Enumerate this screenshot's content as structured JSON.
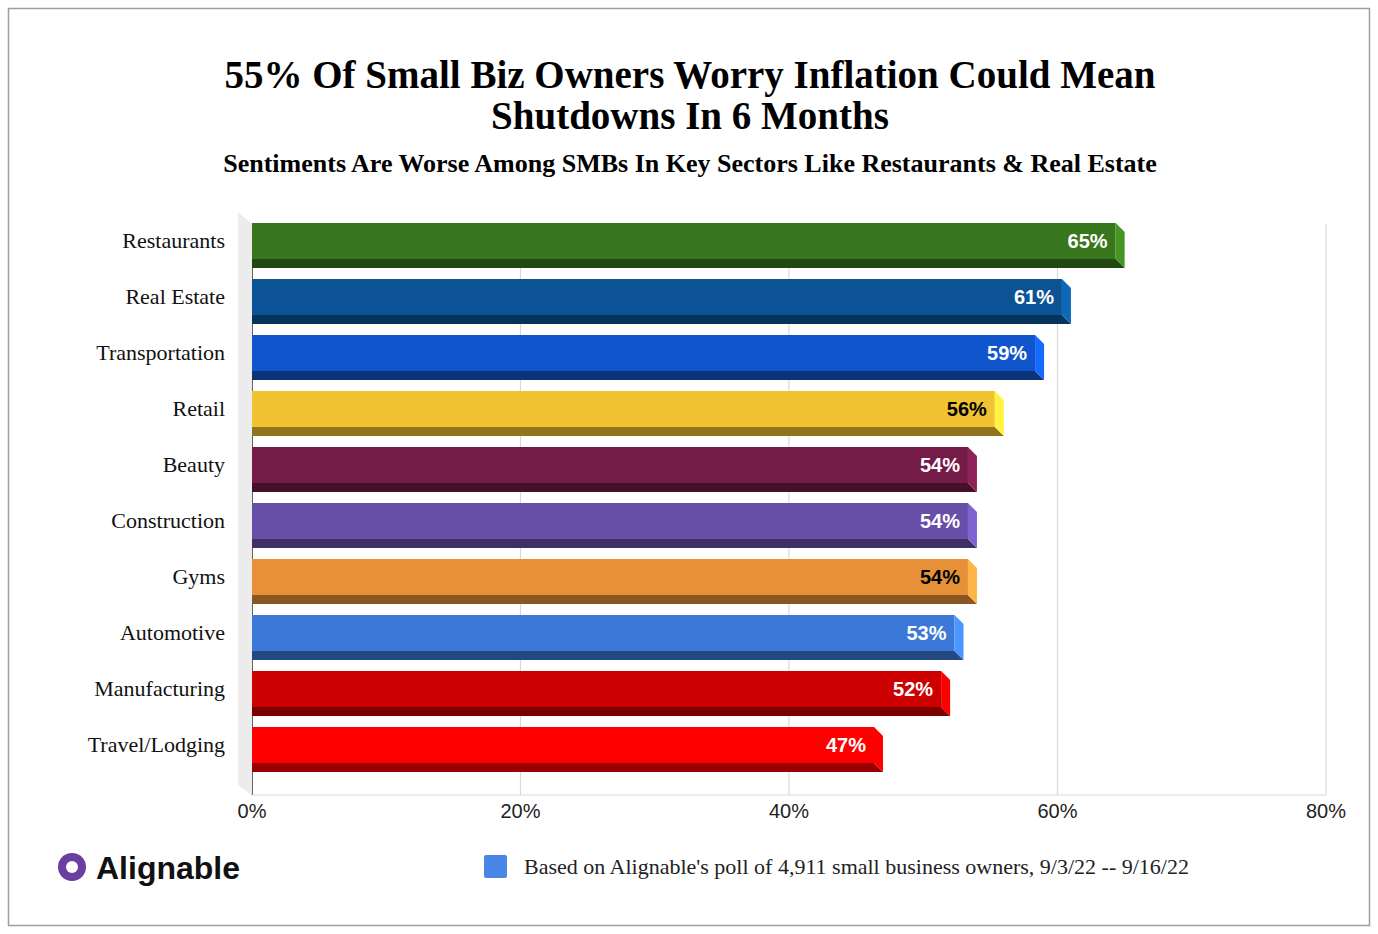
{
  "chart_data": {
    "type": "bar",
    "orientation": "horizontal",
    "title": "55% Of Small Biz Owners Worry Inflation Could Mean\nShutdowns In 6 Months",
    "subtitle": "Sentiments Are Worse Among SMBs In Key Sectors Like Restaurants & Real Estate",
    "categories": [
      "Restaurants",
      "Real Estate",
      "Transportation",
      "Retail",
      "Beauty",
      "Construction",
      "Gyms",
      "Automotive",
      "Manufacturing",
      "Travel/Lodging"
    ],
    "values": [
      65,
      61,
      59,
      56,
      54,
      54,
      54,
      53,
      52,
      47
    ],
    "value_labels": [
      "65%",
      "61%",
      "59%",
      "56%",
      "54%",
      "54%",
      "54%",
      "53%",
      "52%",
      "47%"
    ],
    "colors": [
      "#38761d",
      "#0b5394",
      "#1155cc",
      "#f1c232",
      "#741b47",
      "#674ea7",
      "#e69138",
      "#3c78d8",
      "#cc0000",
      "#ff0000"
    ],
    "xlim": [
      0,
      80
    ],
    "xticks": [
      {
        "value": 0,
        "label": "0%"
      },
      {
        "value": 20,
        "label": "20%"
      },
      {
        "value": 40,
        "label": "40%"
      },
      {
        "value": 60,
        "label": "60%"
      },
      {
        "value": 80,
        "label": "80%"
      }
    ],
    "grid": true,
    "data_labels": true,
    "annotations": [
      "Alignable",
      "Based on Alignable's poll of 4,911 small business owners, 9/3/22 -- 9/16/22"
    ]
  }
}
